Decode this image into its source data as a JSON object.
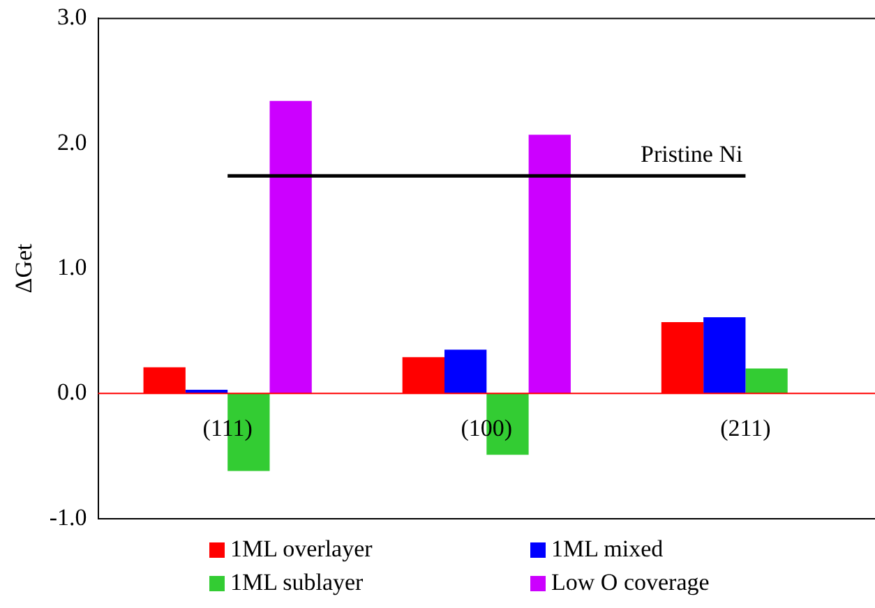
{
  "chart_data": {
    "type": "bar",
    "ylabel": "ΔGet",
    "categories": [
      "(111)",
      "(100)",
      "(211)"
    ],
    "series": [
      {
        "name": "1ML overlayer",
        "color": "#ff0000",
        "values": [
          0.21,
          0.29,
          0.57
        ]
      },
      {
        "name": "1ML mixed",
        "color": "#0000ff",
        "values": [
          0.03,
          0.35,
          0.61
        ]
      },
      {
        "name": "1ML sublayer",
        "color": "#33cc33",
        "values": [
          -0.62,
          -0.49,
          0.2
        ]
      },
      {
        "name": "Low O coverage",
        "color": "#cc00ff",
        "values": [
          2.34,
          2.07,
          null
        ]
      }
    ],
    "ylim": [
      -1.0,
      3.0
    ],
    "yticks": [
      {
        "value": -1,
        "label": "-1.0"
      },
      {
        "value": 0,
        "label": "0.0"
      },
      {
        "value": 1,
        "label": "1.0"
      },
      {
        "value": 2,
        "label": "2.0"
      },
      {
        "value": 3,
        "label": "3.0"
      }
    ],
    "ref_lines": [
      {
        "axis": "y",
        "value": 1.74,
        "label": "Pristine Ni",
        "color": "#000000"
      }
    ],
    "grid": false,
    "legend": "bottom"
  }
}
